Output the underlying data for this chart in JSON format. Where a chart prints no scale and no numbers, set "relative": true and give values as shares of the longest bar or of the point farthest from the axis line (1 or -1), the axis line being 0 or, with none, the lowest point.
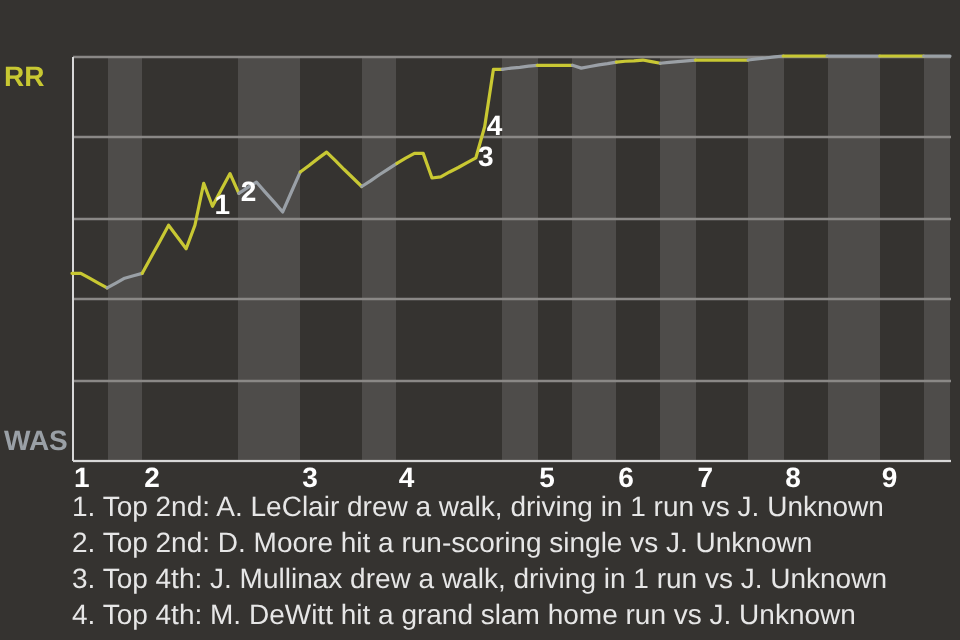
{
  "chart_data": {
    "type": "line",
    "relative": true,
    "grid": "y",
    "categories": [
      null,
      "1",
      null,
      null,
      null,
      null,
      null,
      null,
      null,
      "2",
      null,
      null,
      null,
      null,
      null,
      null,
      null,
      null,
      null,
      null,
      null,
      null,
      null,
      null,
      null,
      null,
      null,
      "3",
      null,
      null,
      null,
      null,
      null,
      null,
      null,
      null,
      null,
      null,
      "4",
      null,
      null,
      null,
      null,
      null,
      null,
      null,
      null,
      null,
      null,
      null,
      null,
      null,
      null,
      null,
      "5",
      null,
      null,
      null,
      null,
      null,
      null,
      null,
      null,
      "6",
      null,
      null,
      null,
      null,
      null,
      null,
      null,
      null,
      "7",
      null,
      null,
      null,
      null,
      null,
      null,
      null,
      null,
      null,
      "8",
      null,
      null,
      null,
      null,
      null,
      null,
      null,
      null,
      null,
      null,
      "9",
      null,
      null,
      null,
      null,
      null,
      null,
      null
    ],
    "series": [
      {
        "name": "RR",
        "color": "#c8c832",
        "values": [
          0.462,
          0.462,
          0.45,
          0.438,
          0.426,
          null,
          null,
          null,
          null,
          null,
          null,
          null,
          null,
          null,
          null,
          null,
          null,
          null,
          null,
          null,
          null,
          null,
          null,
          null,
          null,
          null,
          null,
          null,
          null,
          null,
          null,
          null,
          null,
          null,
          null,
          null,
          null,
          null,
          null,
          null,
          null,
          null,
          null,
          null,
          null,
          null,
          null,
          null,
          null,
          null,
          null,
          null,
          null,
          null,
          null,
          null,
          null,
          null,
          null,
          null,
          null,
          null,
          null,
          null,
          null,
          null,
          null,
          null,
          null,
          null,
          null,
          null,
          null,
          null,
          null,
          null,
          null,
          null,
          null,
          null,
          null,
          null,
          null,
          null,
          null,
          null,
          null,
          null,
          null,
          null,
          null,
          null,
          null,
          null,
          null,
          null,
          null,
          null,
          null,
          null,
          null
        ]
      },
      {
        "name": "WAS",
        "color": "#9aa0a6",
        "values": [
          null,
          null,
          null,
          null,
          0.426,
          0.438,
          0.45,
          0.456,
          0.462,
          null,
          null,
          null,
          null,
          null,
          null,
          null,
          null,
          null,
          null,
          null,
          null,
          null,
          null,
          null,
          null,
          null,
          null,
          null,
          null,
          null,
          null,
          null,
          null,
          null,
          null,
          null,
          null,
          null,
          null,
          null,
          null,
          null,
          null,
          null,
          null,
          null,
          null,
          null,
          null,
          null,
          null,
          null,
          null,
          null,
          null,
          null,
          null,
          null,
          null,
          null,
          null,
          null,
          null,
          null,
          null,
          null,
          null,
          null,
          null,
          null,
          null,
          null,
          null,
          null,
          null,
          null,
          null,
          null,
          null,
          null,
          null,
          null,
          null,
          null,
          null,
          null,
          null,
          null,
          null,
          null,
          null,
          null,
          null,
          null,
          null,
          null,
          null,
          null,
          null,
          null,
          null
        ]
      },
      {
        "color": "#c8c833",
        "values": [
          null,
          null,
          null,
          null,
          null,
          null,
          null,
          null,
          0.462,
          0.502,
          0.541,
          0.581,
          0.552,
          0.523,
          0.581,
          0.685,
          0.628,
          0.669,
          0.709,
          0.66,
          null,
          null,
          null,
          null,
          null,
          null,
          null,
          null,
          null,
          null,
          null,
          null,
          null,
          null,
          null,
          null,
          null,
          null,
          null,
          null,
          null,
          null,
          null,
          null,
          null,
          null,
          null,
          null,
          null,
          null,
          null,
          null,
          null,
          null,
          null,
          null,
          null,
          null,
          null,
          null,
          null,
          null,
          null,
          null,
          null,
          null,
          null,
          null,
          null,
          null,
          null,
          null,
          null,
          null,
          null,
          null,
          null,
          null,
          null,
          null,
          null,
          null,
          null,
          null,
          null,
          null,
          null,
          null,
          null,
          null,
          null,
          null,
          null,
          null,
          null,
          null,
          null,
          null,
          null,
          null,
          null
        ]
      },
      {
        "color": "#9aa0a7",
        "values": [
          null,
          null,
          null,
          null,
          null,
          null,
          null,
          null,
          null,
          null,
          null,
          null,
          null,
          null,
          null,
          null,
          null,
          null,
          null,
          0.66,
          0.674,
          0.688,
          0.663,
          0.639,
          0.614,
          0.664,
          0.713,
          null,
          null,
          null,
          null,
          null,
          null,
          null,
          null,
          null,
          null,
          null,
          null,
          null,
          null,
          null,
          null,
          null,
          null,
          null,
          null,
          null,
          null,
          null,
          null,
          null,
          null,
          null,
          null,
          null,
          null,
          null,
          null,
          null,
          null,
          null,
          null,
          null,
          null,
          null,
          null,
          null,
          null,
          null,
          null,
          null,
          null,
          null,
          null,
          null,
          null,
          null,
          null,
          null,
          null,
          null,
          null,
          null,
          null,
          null,
          null,
          null,
          null,
          null,
          null,
          null,
          null,
          null,
          null,
          null,
          null,
          null,
          null,
          null,
          null
        ]
      },
      {
        "color": "#c8c834",
        "values": [
          null,
          null,
          null,
          null,
          null,
          null,
          null,
          null,
          null,
          null,
          null,
          null,
          null,
          null,
          null,
          null,
          null,
          null,
          null,
          null,
          null,
          null,
          null,
          null,
          null,
          null,
          0.713,
          0.729,
          0.746,
          0.762,
          0.741,
          0.719,
          0.698,
          0.677,
          null,
          null,
          null,
          null,
          null,
          null,
          null,
          null,
          null,
          null,
          null,
          null,
          null,
          null,
          null,
          null,
          null,
          null,
          null,
          null,
          null,
          null,
          null,
          null,
          null,
          null,
          null,
          null,
          null,
          null,
          null,
          null,
          null,
          null,
          null,
          null,
          null,
          null,
          null,
          null,
          null,
          null,
          null,
          null,
          null,
          null,
          null,
          null,
          null,
          null,
          null,
          null,
          null,
          null,
          null,
          null,
          null,
          null,
          null,
          null,
          null,
          null,
          null,
          null,
          null,
          null,
          null
        ]
      },
      {
        "color": "#9aa0a5",
        "values": [
          null,
          null,
          null,
          null,
          null,
          null,
          null,
          null,
          null,
          null,
          null,
          null,
          null,
          null,
          null,
          null,
          null,
          null,
          null,
          null,
          null,
          null,
          null,
          null,
          null,
          null,
          null,
          null,
          null,
          null,
          null,
          null,
          null,
          0.677,
          0.691,
          0.706,
          0.72,
          0.734,
          null,
          null,
          null,
          null,
          null,
          null,
          null,
          null,
          null,
          null,
          null,
          null,
          null,
          null,
          null,
          null,
          null,
          null,
          null,
          null,
          null,
          null,
          null,
          null,
          null,
          null,
          null,
          null,
          null,
          null,
          null,
          null,
          null,
          null,
          null,
          null,
          null,
          null,
          null,
          null,
          null,
          null,
          null,
          null,
          null,
          null,
          null,
          null,
          null,
          null,
          null,
          null,
          null,
          null,
          null,
          null,
          null,
          null,
          null,
          null,
          null,
          null,
          null
        ]
      },
      {
        "color": "#c9c832",
        "values": [
          null,
          null,
          null,
          null,
          null,
          null,
          null,
          null,
          null,
          null,
          null,
          null,
          null,
          null,
          null,
          null,
          null,
          null,
          null,
          null,
          null,
          null,
          null,
          null,
          null,
          null,
          null,
          null,
          null,
          null,
          null,
          null,
          null,
          null,
          null,
          null,
          null,
          0.734,
          0.747,
          0.759,
          0.759,
          0.698,
          0.701,
          0.713,
          0.724,
          0.736,
          0.748,
          0.825,
          0.967,
          0.967,
          null,
          null,
          null,
          null,
          null,
          null,
          null,
          null,
          null,
          null,
          null,
          null,
          null,
          null,
          null,
          null,
          null,
          null,
          null,
          null,
          null,
          null,
          null,
          null,
          null,
          null,
          null,
          null,
          null,
          null,
          null,
          null,
          null,
          null,
          null,
          null,
          null,
          null,
          null,
          null,
          null,
          null,
          null,
          null,
          null,
          null,
          null,
          null,
          null,
          null,
          null
        ]
      },
      {
        "color": "#9ba0a6",
        "values": [
          null,
          null,
          null,
          null,
          null,
          null,
          null,
          null,
          null,
          null,
          null,
          null,
          null,
          null,
          null,
          null,
          null,
          null,
          null,
          null,
          null,
          null,
          null,
          null,
          null,
          null,
          null,
          null,
          null,
          null,
          null,
          null,
          null,
          null,
          null,
          null,
          null,
          null,
          null,
          null,
          null,
          null,
          null,
          null,
          null,
          null,
          null,
          null,
          null,
          0.967,
          0.97,
          0.972,
          0.975,
          0.977,
          null,
          null,
          null,
          null,
          null,
          null,
          null,
          null,
          null,
          null,
          null,
          null,
          null,
          null,
          null,
          null,
          null,
          null,
          null,
          null,
          null,
          null,
          null,
          null,
          null,
          null,
          null,
          null,
          null,
          null,
          null,
          null,
          null,
          null,
          null,
          null,
          null,
          null,
          null,
          null,
          null,
          null,
          null,
          null,
          null,
          null,
          null
        ]
      },
      {
        "color": "#c9c833",
        "values": [
          null,
          null,
          null,
          null,
          null,
          null,
          null,
          null,
          null,
          null,
          null,
          null,
          null,
          null,
          null,
          null,
          null,
          null,
          null,
          null,
          null,
          null,
          null,
          null,
          null,
          null,
          null,
          null,
          null,
          null,
          null,
          null,
          null,
          null,
          null,
          null,
          null,
          null,
          null,
          null,
          null,
          null,
          null,
          null,
          null,
          null,
          null,
          null,
          null,
          null,
          null,
          null,
          null,
          0.977,
          0.977,
          0.977,
          0.977,
          0.977,
          null,
          null,
          null,
          null,
          null,
          null,
          null,
          null,
          null,
          null,
          null,
          null,
          null,
          null,
          null,
          null,
          null,
          null,
          null,
          null,
          null,
          null,
          null,
          null,
          null,
          null,
          null,
          null,
          null,
          null,
          null,
          null,
          null,
          null,
          null,
          null,
          null,
          null,
          null,
          null,
          null,
          null,
          null
        ]
      },
      {
        "color": "#9ba0a7",
        "values": [
          null,
          null,
          null,
          null,
          null,
          null,
          null,
          null,
          null,
          null,
          null,
          null,
          null,
          null,
          null,
          null,
          null,
          null,
          null,
          null,
          null,
          null,
          null,
          null,
          null,
          null,
          null,
          null,
          null,
          null,
          null,
          null,
          null,
          null,
          null,
          null,
          null,
          null,
          null,
          null,
          null,
          null,
          null,
          null,
          null,
          null,
          null,
          null,
          null,
          null,
          null,
          null,
          null,
          null,
          null,
          null,
          null,
          0.977,
          0.97,
          0.974,
          0.978,
          0.981,
          0.985,
          null,
          null,
          null,
          null,
          null,
          null,
          null,
          null,
          null,
          null,
          null,
          null,
          null,
          null,
          null,
          null,
          null,
          null,
          null,
          null,
          null,
          null,
          null,
          null,
          null,
          null,
          null,
          null,
          null,
          null,
          null,
          null,
          null,
          null,
          null,
          null,
          null,
          null
        ]
      },
      {
        "color": "#c9c834",
        "values": [
          null,
          null,
          null,
          null,
          null,
          null,
          null,
          null,
          null,
          null,
          null,
          null,
          null,
          null,
          null,
          null,
          null,
          null,
          null,
          null,
          null,
          null,
          null,
          null,
          null,
          null,
          null,
          null,
          null,
          null,
          null,
          null,
          null,
          null,
          null,
          null,
          null,
          null,
          null,
          null,
          null,
          null,
          null,
          null,
          null,
          null,
          null,
          null,
          null,
          null,
          null,
          null,
          null,
          null,
          null,
          null,
          null,
          null,
          null,
          null,
          null,
          null,
          0.985,
          0.987,
          0.988,
          0.99,
          0.986,
          0.982,
          null,
          null,
          null,
          null,
          null,
          null,
          null,
          null,
          null,
          null,
          null,
          null,
          null,
          null,
          null,
          null,
          null,
          null,
          null,
          null,
          null,
          null,
          null,
          null,
          null,
          null,
          null,
          null,
          null,
          null,
          null,
          null,
          null
        ]
      },
      {
        "color": "#9ba0a5",
        "values": [
          null,
          null,
          null,
          null,
          null,
          null,
          null,
          null,
          null,
          null,
          null,
          null,
          null,
          null,
          null,
          null,
          null,
          null,
          null,
          null,
          null,
          null,
          null,
          null,
          null,
          null,
          null,
          null,
          null,
          null,
          null,
          null,
          null,
          null,
          null,
          null,
          null,
          null,
          null,
          null,
          null,
          null,
          null,
          null,
          null,
          null,
          null,
          null,
          null,
          null,
          null,
          null,
          null,
          null,
          null,
          null,
          null,
          null,
          null,
          null,
          null,
          null,
          null,
          null,
          null,
          null,
          null,
          0.982,
          0.984,
          0.986,
          0.988,
          0.99,
          null,
          null,
          null,
          null,
          null,
          null,
          null,
          null,
          null,
          null,
          null,
          null,
          null,
          null,
          null,
          null,
          null,
          null,
          null,
          null,
          null,
          null,
          null,
          null,
          null,
          null,
          null,
          null,
          null
        ]
      },
      {
        "color": "#c7c832",
        "values": [
          null,
          null,
          null,
          null,
          null,
          null,
          null,
          null,
          null,
          null,
          null,
          null,
          null,
          null,
          null,
          null,
          null,
          null,
          null,
          null,
          null,
          null,
          null,
          null,
          null,
          null,
          null,
          null,
          null,
          null,
          null,
          null,
          null,
          null,
          null,
          null,
          null,
          null,
          null,
          null,
          null,
          null,
          null,
          null,
          null,
          null,
          null,
          null,
          null,
          null,
          null,
          null,
          null,
          null,
          null,
          null,
          null,
          null,
          null,
          null,
          null,
          null,
          null,
          null,
          null,
          null,
          null,
          null,
          null,
          null,
          null,
          0.99,
          0.99,
          0.99,
          0.99,
          0.99,
          0.99,
          0.99,
          null,
          null,
          null,
          null,
          null,
          null,
          null,
          null,
          null,
          null,
          null,
          null,
          null,
          null,
          null,
          null,
          null,
          null,
          null,
          null,
          null,
          null,
          null
        ]
      },
      {
        "color": "#99a0a6",
        "values": [
          null,
          null,
          null,
          null,
          null,
          null,
          null,
          null,
          null,
          null,
          null,
          null,
          null,
          null,
          null,
          null,
          null,
          null,
          null,
          null,
          null,
          null,
          null,
          null,
          null,
          null,
          null,
          null,
          null,
          null,
          null,
          null,
          null,
          null,
          null,
          null,
          null,
          null,
          null,
          null,
          null,
          null,
          null,
          null,
          null,
          null,
          null,
          null,
          null,
          null,
          null,
          null,
          null,
          null,
          null,
          null,
          null,
          null,
          null,
          null,
          null,
          null,
          null,
          null,
          null,
          null,
          null,
          null,
          null,
          null,
          null,
          null,
          null,
          null,
          null,
          null,
          null,
          0.99,
          0.993,
          0.995,
          0.998,
          1,
          null,
          null,
          null,
          null,
          null,
          null,
          null,
          null,
          null,
          null,
          null,
          null,
          null,
          null,
          null,
          null,
          null,
          null,
          null
        ]
      },
      {
        "color": "#c7c833",
        "values": [
          null,
          null,
          null,
          null,
          null,
          null,
          null,
          null,
          null,
          null,
          null,
          null,
          null,
          null,
          null,
          null,
          null,
          null,
          null,
          null,
          null,
          null,
          null,
          null,
          null,
          null,
          null,
          null,
          null,
          null,
          null,
          null,
          null,
          null,
          null,
          null,
          null,
          null,
          null,
          null,
          null,
          null,
          null,
          null,
          null,
          null,
          null,
          null,
          null,
          null,
          null,
          null,
          null,
          null,
          null,
          null,
          null,
          null,
          null,
          null,
          null,
          null,
          null,
          null,
          null,
          null,
          null,
          null,
          null,
          null,
          null,
          null,
          null,
          null,
          null,
          null,
          null,
          null,
          null,
          null,
          null,
          1,
          1,
          1,
          1,
          1,
          1,
          null,
          null,
          null,
          null,
          null,
          null,
          null,
          null,
          null,
          null,
          null,
          null,
          null,
          null
        ]
      },
      {
        "color": "#99a0a7",
        "values": [
          null,
          null,
          null,
          null,
          null,
          null,
          null,
          null,
          null,
          null,
          null,
          null,
          null,
          null,
          null,
          null,
          null,
          null,
          null,
          null,
          null,
          null,
          null,
          null,
          null,
          null,
          null,
          null,
          null,
          null,
          null,
          null,
          null,
          null,
          null,
          null,
          null,
          null,
          null,
          null,
          null,
          null,
          null,
          null,
          null,
          null,
          null,
          null,
          null,
          null,
          null,
          null,
          null,
          null,
          null,
          null,
          null,
          null,
          null,
          null,
          null,
          null,
          null,
          null,
          null,
          null,
          null,
          null,
          null,
          null,
          null,
          null,
          null,
          null,
          null,
          null,
          null,
          null,
          null,
          null,
          null,
          null,
          null,
          null,
          null,
          null,
          1,
          1,
          1,
          1,
          1,
          1,
          1,
          null,
          null,
          null,
          null,
          null,
          null,
          null,
          null
        ]
      },
      {
        "color": "#c7c834",
        "values": [
          null,
          null,
          null,
          null,
          null,
          null,
          null,
          null,
          null,
          null,
          null,
          null,
          null,
          null,
          null,
          null,
          null,
          null,
          null,
          null,
          null,
          null,
          null,
          null,
          null,
          null,
          null,
          null,
          null,
          null,
          null,
          null,
          null,
          null,
          null,
          null,
          null,
          null,
          null,
          null,
          null,
          null,
          null,
          null,
          null,
          null,
          null,
          null,
          null,
          null,
          null,
          null,
          null,
          null,
          null,
          null,
          null,
          null,
          null,
          null,
          null,
          null,
          null,
          null,
          null,
          null,
          null,
          null,
          null,
          null,
          null,
          null,
          null,
          null,
          null,
          null,
          null,
          null,
          null,
          null,
          null,
          null,
          null,
          null,
          null,
          null,
          null,
          null,
          null,
          null,
          null,
          null,
          1,
          1,
          1,
          1,
          1,
          1,
          null,
          null,
          null
        ]
      },
      {
        "color": "#99a0a5",
        "values": [
          null,
          null,
          null,
          null,
          null,
          null,
          null,
          null,
          null,
          null,
          null,
          null,
          null,
          null,
          null,
          null,
          null,
          null,
          null,
          null,
          null,
          null,
          null,
          null,
          null,
          null,
          null,
          null,
          null,
          null,
          null,
          null,
          null,
          null,
          null,
          null,
          null,
          null,
          null,
          null,
          null,
          null,
          null,
          null,
          null,
          null,
          null,
          null,
          null,
          null,
          null,
          null,
          null,
          null,
          null,
          null,
          null,
          null,
          null,
          null,
          null,
          null,
          null,
          null,
          null,
          null,
          null,
          null,
          null,
          null,
          null,
          null,
          null,
          null,
          null,
          null,
          null,
          null,
          null,
          null,
          null,
          null,
          null,
          null,
          null,
          null,
          null,
          null,
          null,
          null,
          null,
          null,
          null,
          null,
          null,
          null,
          null,
          1,
          1,
          1,
          1
        ]
      }
    ],
    "annotations": [
      {
        "text": "1",
        "y": 0.628
      },
      {
        "text": "2",
        "y": 0.66
      },
      {
        "text": "3",
        "y": 0.748
      },
      {
        "text": "4",
        "y": 0.825
      },
      "1. Top 2nd: A. LeClair drew a walk, driving in 1 run vs J. Unknown",
      "2. Top 2nd: D. Moore hit a run-scoring single vs J. Unknown",
      "3. Top 4th: J. Mullinax drew a walk, driving in 1 run vs J. Unknown",
      "4. Top 4th: M. DeWitt hit a grand slam home run vs J. Unknown"
    ]
  }
}
